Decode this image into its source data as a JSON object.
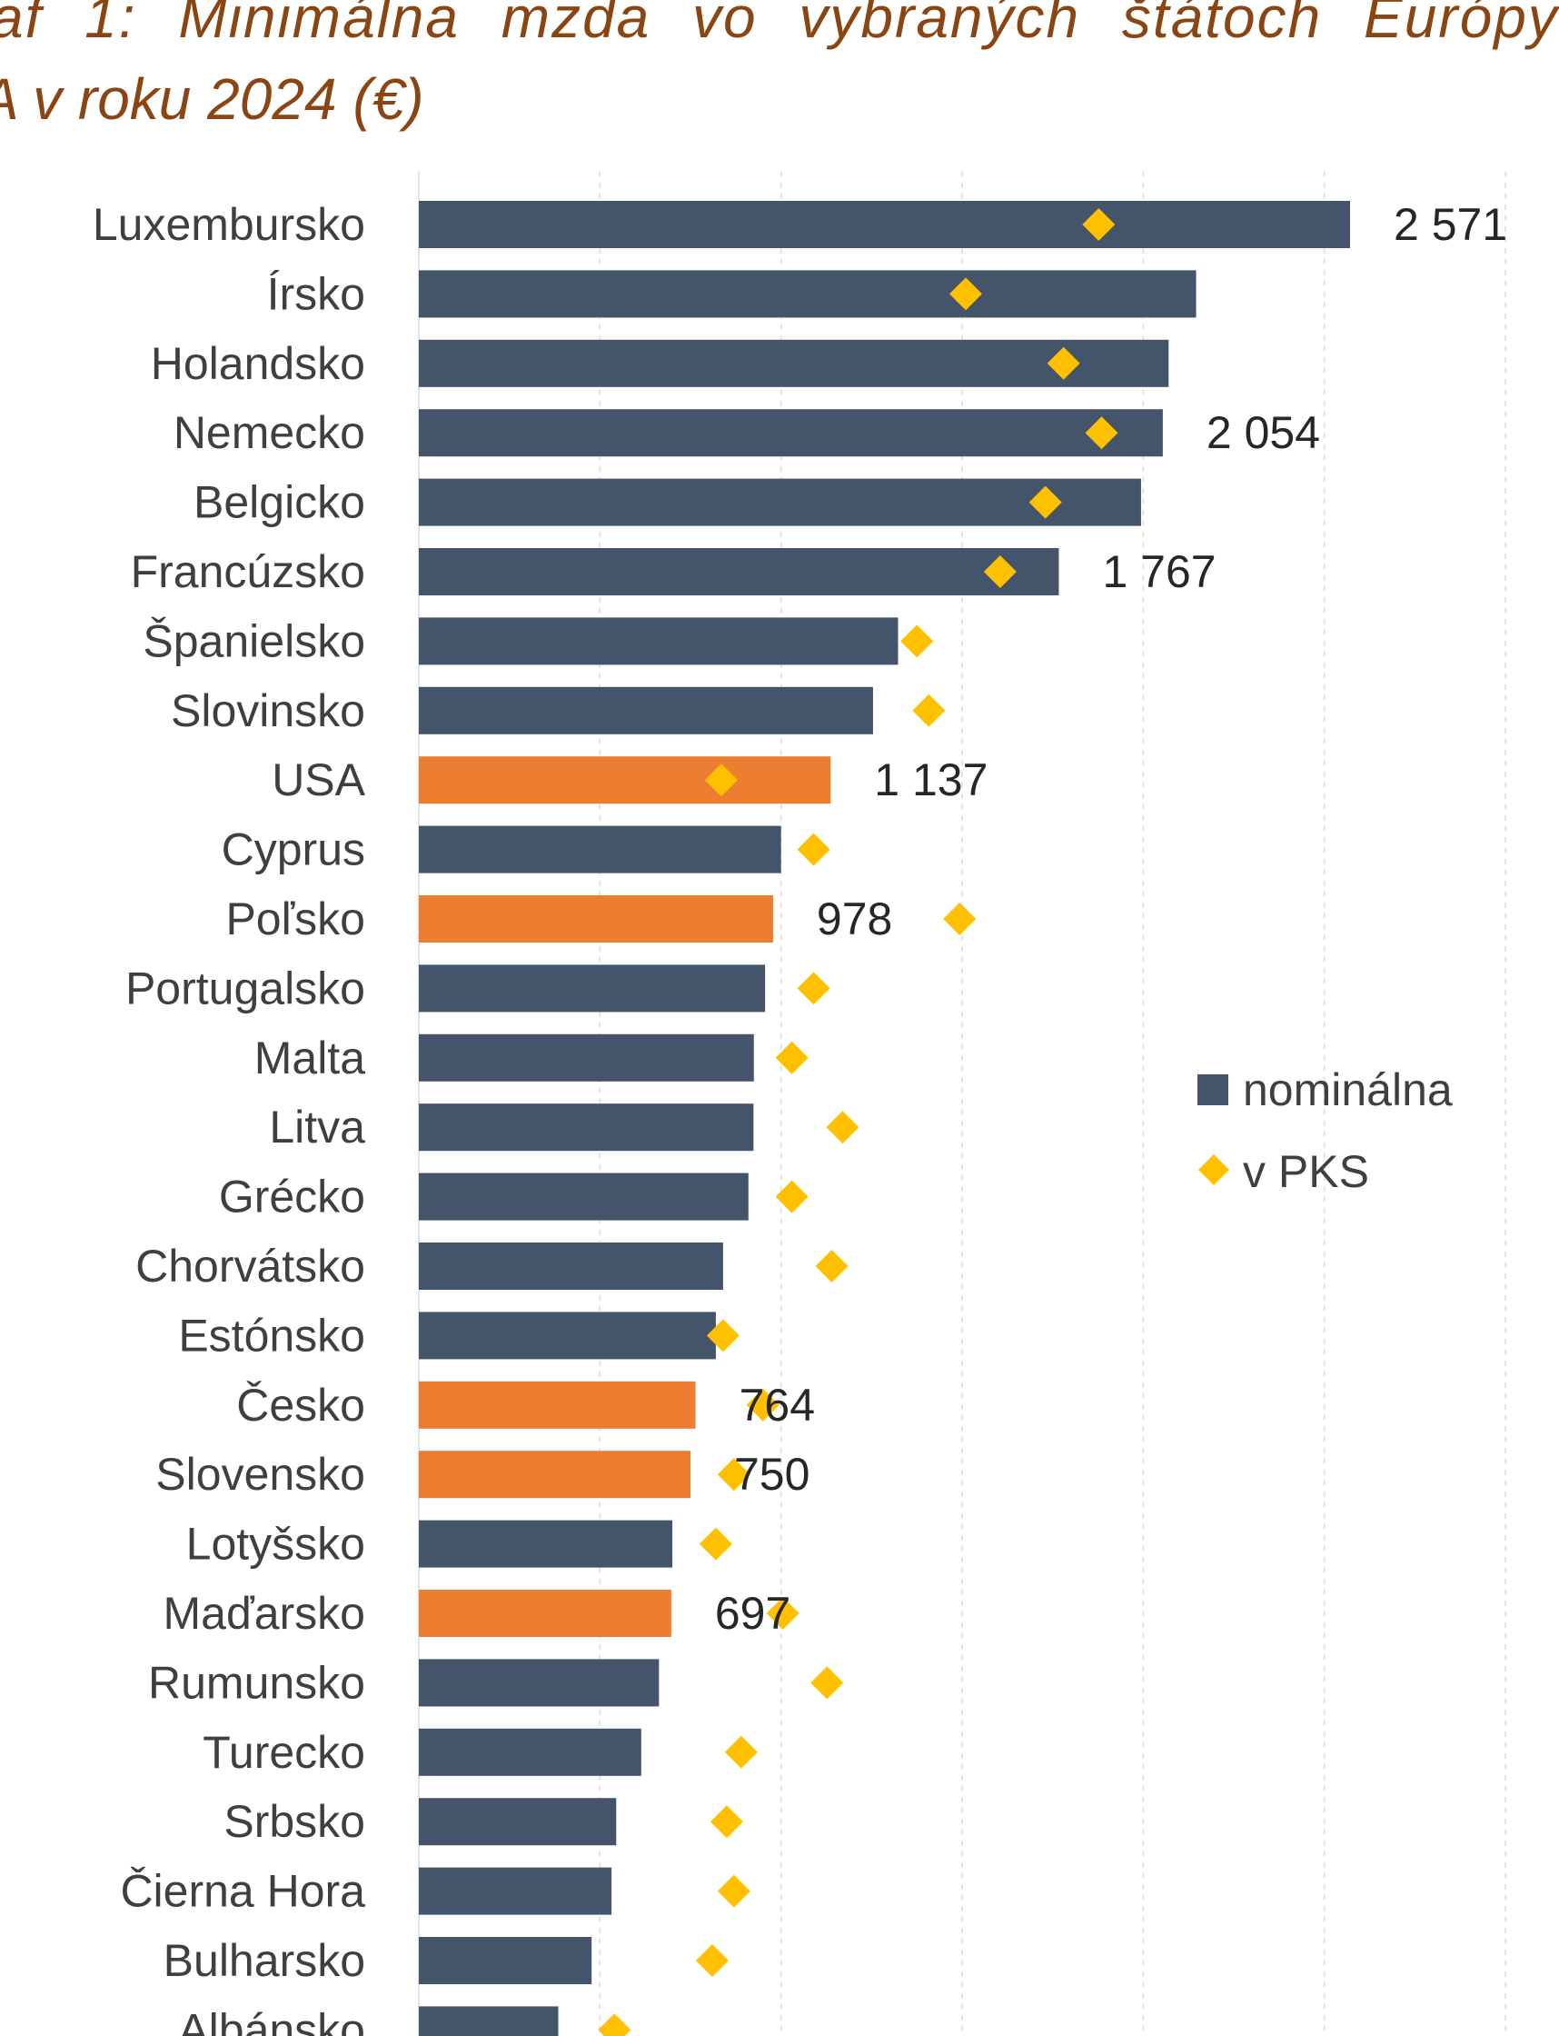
{
  "title": {
    "line1": "af 1: Minimálna mzda vo vybraných štátoch Európy",
    "line2": "A v roku 2024 (€)"
  },
  "legend": {
    "nominal": "nominálna",
    "pps": "v PKS"
  },
  "colors": {
    "nominal": "#44546A",
    "highlight": "#ED7D31",
    "pps": "#FFC000",
    "grid": "#E3E3E3"
  },
  "chart_data": {
    "type": "bar",
    "orientation": "horizontal",
    "title": "af 1: Minimálna mzda vo vybraných štátoch Európy A v roku 2024 (€)",
    "xlim": [
      0,
      3000
    ],
    "grid": true,
    "legend_position": "right",
    "categories": [
      "Luxembursko",
      "Írsko",
      "Holandsko",
      "Nemecko",
      "Belgicko",
      "Francúzsko",
      "Španielsko",
      "Slovinsko",
      "USA",
      "Cyprus",
      "Poľsko",
      "Portugalsko",
      "Malta",
      "Litva",
      "Grécko",
      "Chorvátsko",
      "Estónsko",
      "Česko",
      "Slovensko",
      "Lotyšsko",
      "Maďarsko",
      "Rumunsko",
      "Turecko",
      "Srbsko",
      "Čierna Hora",
      "Bulharsko",
      "Albánsko"
    ],
    "highlighted": [
      "USA",
      "Poľsko",
      "Česko",
      "Slovensko",
      "Maďarsko"
    ],
    "series": [
      {
        "name": "nominálna",
        "kind": "bar",
        "values": [
          2571,
          2146,
          2070,
          2054,
          1994,
          1767,
          1323,
          1254,
          1137,
          1000,
          978,
          956,
          925,
          924,
          910,
          840,
          820,
          764,
          750,
          700,
          697,
          663,
          614,
          545,
          532,
          477,
          385
        ]
      },
      {
        "name": "v PKS",
        "kind": "marker",
        "values": [
          1877,
          1510,
          1780,
          1885,
          1730,
          1605,
          1375,
          1408,
          835,
          1090,
          1493,
          1090,
          1030,
          1170,
          1030,
          1140,
          840,
          950,
          870,
          820,
          1005,
          1127,
          890,
          850,
          870,
          810,
          540
        ]
      }
    ],
    "data_labels": [
      {
        "category": "Luxembursko",
        "text": "2 571"
      },
      {
        "category": "Nemecko",
        "text": "2 054"
      },
      {
        "category": "Francúzsko",
        "text": "1 767"
      },
      {
        "category": "USA",
        "text": "1 137"
      },
      {
        "category": "Poľsko",
        "text": "978"
      },
      {
        "category": "Česko",
        "text": "764"
      },
      {
        "category": "Slovensko",
        "text": "750"
      },
      {
        "category": "Maďarsko",
        "text": "697"
      }
    ]
  }
}
